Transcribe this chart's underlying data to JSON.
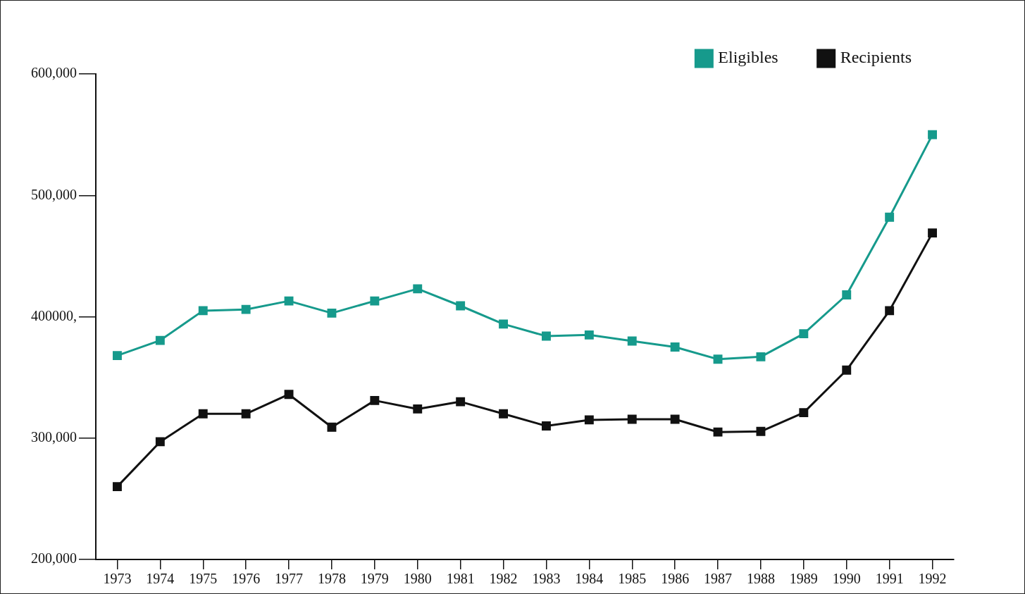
{
  "chart_data": {
    "type": "line",
    "categories": [
      "1973",
      "1974",
      "1975",
      "1976",
      "1977",
      "1978",
      "1979",
      "1980",
      "1981",
      "1982",
      "1983",
      "1984",
      "1985",
      "1986",
      "1987",
      "1988",
      "1989",
      "1990",
      "1991",
      "1992"
    ],
    "series": [
      {
        "name": "Eligibles",
        "color": "#169a8c",
        "values": [
          368000,
          380500,
          405000,
          406000,
          413000,
          403000,
          413000,
          423000,
          409000,
          394000,
          384000,
          385000,
          380000,
          375000,
          365000,
          367000,
          386000,
          418000,
          482000,
          550000
        ]
      },
      {
        "name": "Recipients",
        "color": "#111111",
        "values": [
          260000,
          297000,
          320000,
          320000,
          336000,
          309000,
          331000,
          324000,
          330000,
          320000,
          310000,
          315000,
          315500,
          315500,
          305000,
          305500,
          321000,
          356000,
          405000,
          469000
        ]
      }
    ],
    "ylim": [
      200000,
      600000
    ],
    "yticks": [
      {
        "value": 200000,
        "label": "200,000"
      },
      {
        "value": 300000,
        "label": "300,000"
      },
      {
        "value": 400000,
        "label": "400000,"
      },
      {
        "value": 500000,
        "label": "500,000"
      },
      {
        "value": 600000,
        "label": "600,000"
      }
    ],
    "grid": false,
    "legend": "top right",
    "marker": "square",
    "line_style": "solid"
  }
}
